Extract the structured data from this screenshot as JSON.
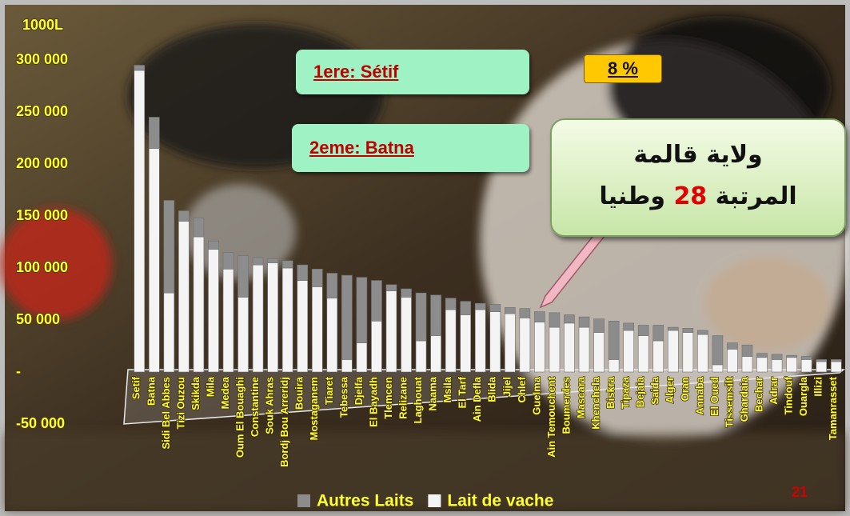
{
  "chart_data": {
    "type": "bar",
    "stacked": true,
    "y_axis_label": "1000L",
    "categories": [
      "Setif",
      "Batna",
      "Sidi Bel Abbes",
      "Tizi Ouzou",
      "Skikda",
      "Mila",
      "Medea",
      "Oum El Bouaghi",
      "Constantine",
      "Souk Ahras",
      "Bordj Bou Arreridj",
      "Bouira",
      "Mostaganem",
      "Tiaret",
      "Tebessa",
      "Djelfa",
      "El Bayadh",
      "Tlemcen",
      "Relizane",
      "Laghouat",
      "Naama",
      "Msila",
      "El Tarf",
      "Ain Defla",
      "Blida",
      "Jijel",
      "Chlef",
      "Guelma",
      "Ain Temouchent",
      "Boumerdes",
      "Mascara",
      "Khenchela",
      "Biskra",
      "Tipaza",
      "Bejaia",
      "Saida",
      "Alger",
      "Oran",
      "Annaba",
      "El Oued",
      "Tissemsilt",
      "Ghardaia",
      "Bechar",
      "Adrar",
      "Tindouf",
      "Ouargla",
      "Illizi",
      "Tamanrasset"
    ],
    "series": [
      {
        "name": "Autres Laits",
        "color": "#8c8c8c",
        "values": [
          5000,
          30000,
          89000,
          10000,
          18000,
          8000,
          16000,
          40000,
          7000,
          4000,
          7000,
          15000,
          17000,
          24000,
          81000,
          63000,
          39000,
          6000,
          8000,
          46000,
          39000,
          11000,
          13000,
          6000,
          7000,
          6000,
          9000,
          10000,
          14000,
          8000,
          10000,
          13000,
          37000,
          7000,
          10000,
          15000,
          3000,
          4000,
          4000,
          28000,
          6000,
          11000,
          4000,
          5000,
          2000,
          3000,
          2000,
          2000
        ]
      },
      {
        "name": "Lait de vache",
        "color": "#f4f4f4",
        "values": [
          290000,
          215000,
          76000,
          145000,
          130000,
          118000,
          99000,
          72000,
          103000,
          105000,
          100000,
          88000,
          82000,
          71000,
          12000,
          28000,
          49000,
          78000,
          72000,
          30000,
          35000,
          60000,
          55000,
          60000,
          58000,
          56000,
          52000,
          48000,
          43000,
          47000,
          43000,
          38000,
          12000,
          40000,
          35000,
          30000,
          40000,
          38000,
          36000,
          7000,
          22000,
          15000,
          14000,
          12000,
          14000,
          12000,
          10000,
          10000
        ]
      }
    ],
    "ylim": [
      -50000,
      300000
    ],
    "yticks": [
      {
        "value": -50000,
        "label": "-50 000"
      },
      {
        "value": 0,
        "label": "-"
      },
      {
        "value": 50000,
        "label": "50 000"
      },
      {
        "value": 100000,
        "label": "100 000"
      },
      {
        "value": 150000,
        "label": "150 000"
      },
      {
        "value": 200000,
        "label": "200 000"
      },
      {
        "value": 250000,
        "label": "250 000"
      },
      {
        "value": 300000,
        "label": "300 000"
      }
    ],
    "annotations": {
      "first": "1ere: Sétif",
      "second": "2eme: Batna",
      "share": "8 %",
      "callout_line1": "ولاية قالمة",
      "callout_line2": [
        "المرتبة",
        "28",
        "وطنيا"
      ],
      "page_number": "21"
    }
  }
}
